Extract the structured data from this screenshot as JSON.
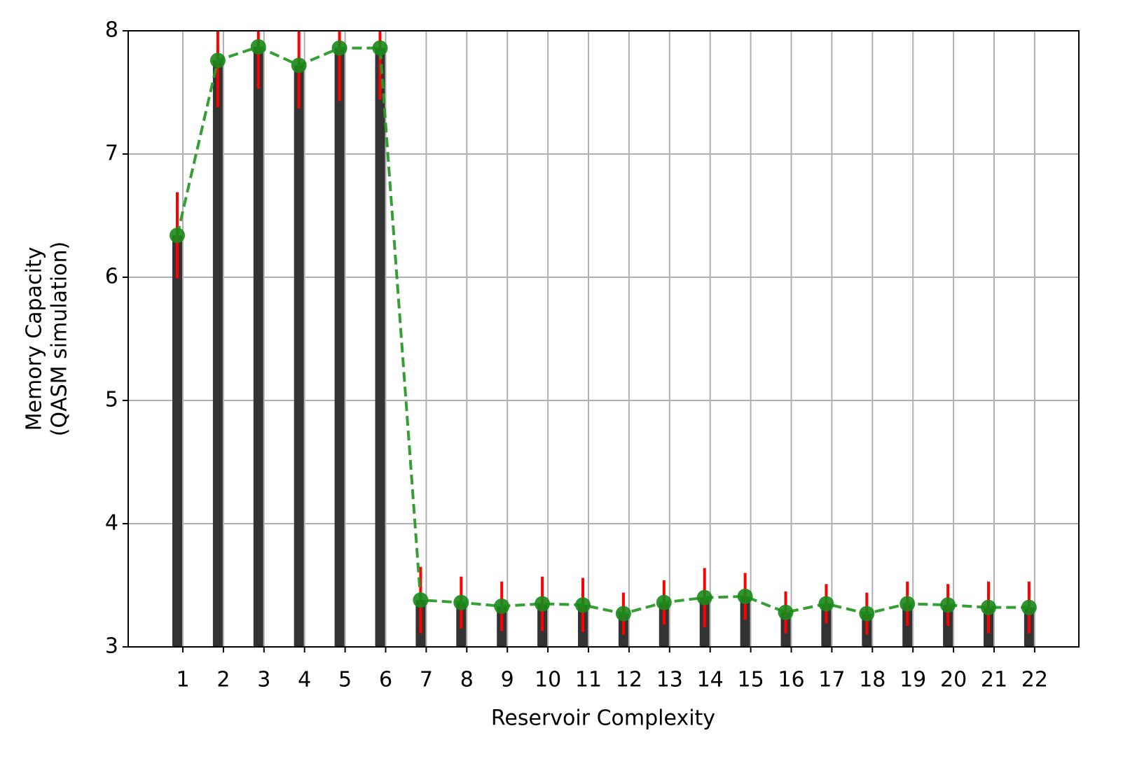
{
  "chart_data": {
    "type": "bar",
    "xlabel": "Reservoir Complexity",
    "ylabel": [
      "Memory Capacity",
      "(QASM simulation)"
    ],
    "categories": [
      "1",
      "2",
      "3",
      "4",
      "5",
      "6",
      "7",
      "8",
      "9",
      "10",
      "11",
      "12",
      "13",
      "14",
      "15",
      "16",
      "17",
      "18",
      "19",
      "20",
      "21",
      "22"
    ],
    "values": [
      6.34,
      7.76,
      7.87,
      7.72,
      7.86,
      7.86,
      3.38,
      3.36,
      3.33,
      3.35,
      3.34,
      3.27,
      3.36,
      3.4,
      3.41,
      3.28,
      3.35,
      3.27,
      3.35,
      3.34,
      3.32,
      3.32
    ],
    "errors": [
      0.35,
      0.38,
      0.34,
      0.35,
      0.43,
      0.42,
      0.27,
      0.21,
      0.2,
      0.22,
      0.22,
      0.17,
      0.18,
      0.24,
      0.19,
      0.17,
      0.16,
      0.17,
      0.18,
      0.17,
      0.21,
      0.21
    ],
    "color": "#333333",
    "error_color": "#ff0000",
    "line_color": "#2a9a2a",
    "marker_color": "#1a8a1a",
    "ylim": [
      3,
      8
    ],
    "yticks": [
      3,
      4,
      5,
      6,
      7,
      8
    ],
    "grid": true
  }
}
